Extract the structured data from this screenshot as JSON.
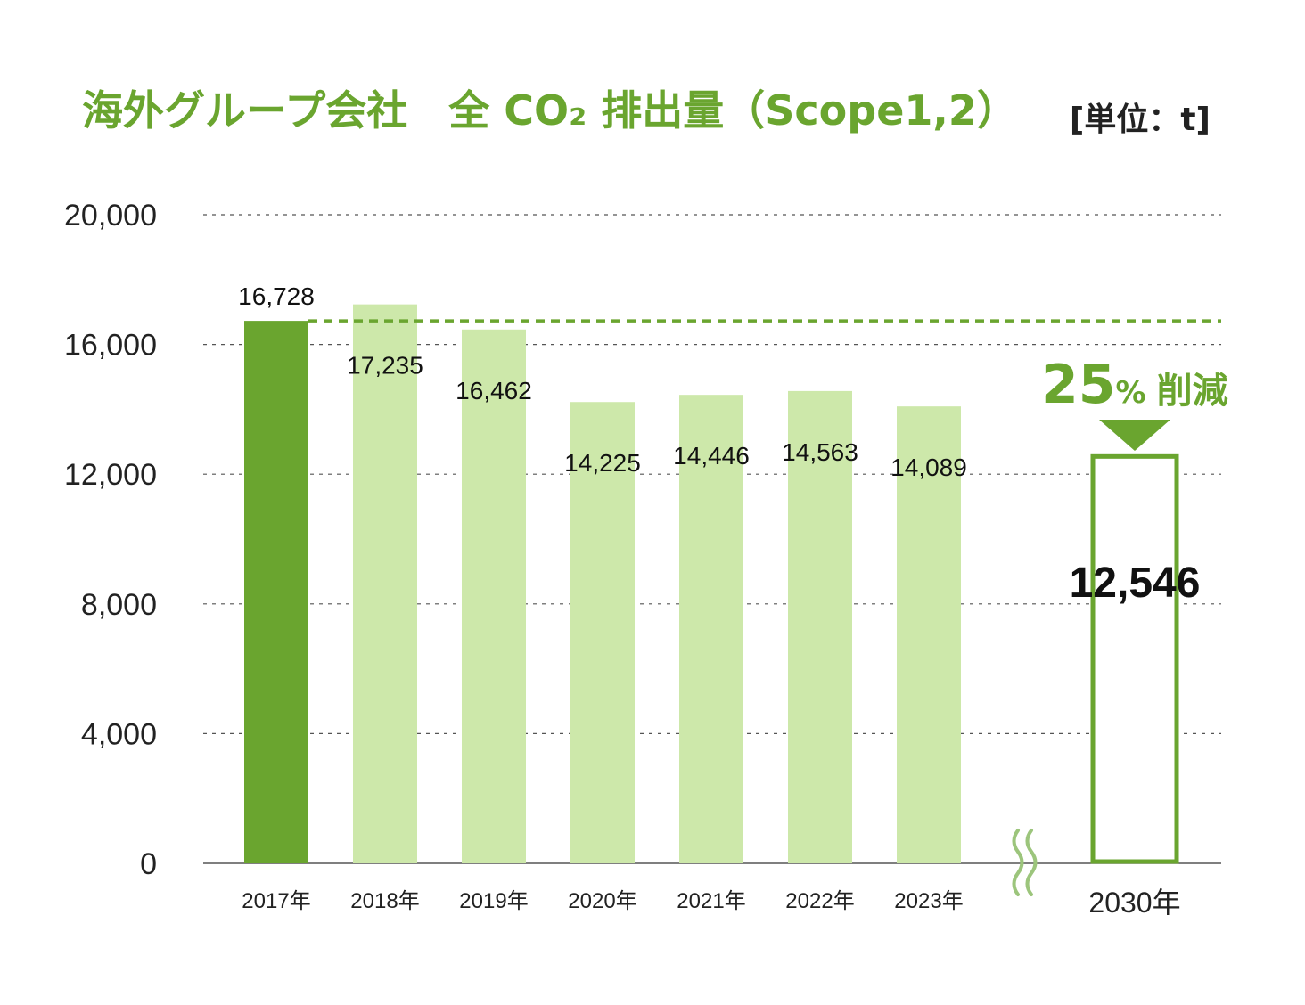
{
  "title": "海外グループ会社　全 CO₂ 排出量（Scope1,2）",
  "unit": "[単位：t]",
  "colors": {
    "accent": "#6aa52f",
    "light_bar": "#cde8aa",
    "grid": "#555555",
    "text": "#222222"
  },
  "chart_data": {
    "type": "bar",
    "categories": [
      "2017年",
      "2018年",
      "2019年",
      "2020年",
      "2021年",
      "2022年",
      "2023年",
      "2030年"
    ],
    "values": [
      16728,
      17235,
      16462,
      14225,
      14446,
      14563,
      14089,
      12546
    ],
    "value_labels": [
      "16,728",
      "17,235",
      "16,462",
      "14,225",
      "14,446",
      "14,563",
      "14,089",
      "12,546"
    ],
    "yticks": [
      "0",
      "4,000",
      "8,000",
      "12,000",
      "16,000",
      "20,000"
    ],
    "ylim": [
      0,
      20000
    ],
    "grid": true,
    "reference_line": 16728,
    "reduction": {
      "number": "25",
      "percent_sign": "%",
      "text": "削減"
    }
  }
}
